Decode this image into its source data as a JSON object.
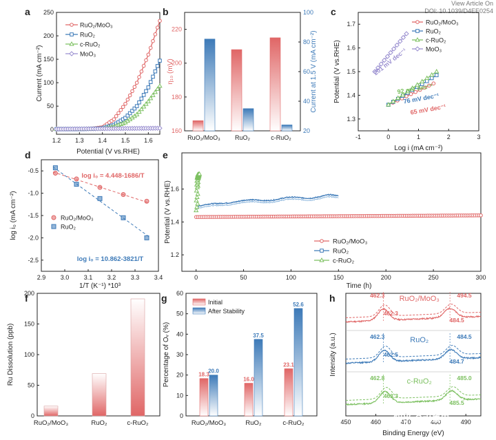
{
  "header": {
    "line1": "View Article On",
    "line2": "DOI: 10.1039/D4EE0254"
  },
  "watermark": "知乎 @水墨电",
  "colors": {
    "red": "#e06666",
    "blue": "#3d7ab8",
    "green": "#7cc060",
    "purple": "#9a8fd0",
    "lightBlue": "#8fb8de"
  },
  "chart_data": [
    {
      "panel": "a",
      "type": "line",
      "xlabel": "Potential (V vs.RHE)",
      "ylabel": "Current (mA cm⁻²)",
      "xlim": [
        1.2,
        1.65
      ],
      "ylim": [
        -10,
        250
      ],
      "xticks": [
        "1.2",
        "1.3",
        "1.4",
        "1.5",
        "1.6"
      ],
      "yticks": [
        "0",
        "50",
        "100",
        "150",
        "200",
        "250"
      ],
      "series": [
        {
          "name": "RuO₂/MoO₃",
          "color": "#e06666",
          "x": [
            1.2,
            1.3,
            1.35,
            1.4,
            1.45,
            1.5,
            1.55,
            1.6,
            1.65
          ],
          "y": [
            1,
            1,
            2,
            5,
            22,
            55,
            100,
            160,
            232
          ]
        },
        {
          "name": "RuO₂",
          "color": "#3d7ab8",
          "x": [
            1.2,
            1.3,
            1.35,
            1.4,
            1.45,
            1.5,
            1.55,
            1.6,
            1.65
          ],
          "y": [
            1,
            1,
            1.5,
            3,
            10,
            25,
            50,
            90,
            147
          ]
        },
        {
          "name": "c-RuO₂",
          "color": "#7cc060",
          "x": [
            1.2,
            1.3,
            1.35,
            1.4,
            1.45,
            1.5,
            1.55,
            1.6,
            1.65
          ],
          "y": [
            1,
            1,
            1.5,
            2,
            6,
            15,
            32,
            60,
            93
          ]
        },
        {
          "name": "MoO₃",
          "color": "#9a8fd0",
          "x": [
            1.2,
            1.65
          ],
          "y": [
            1,
            3
          ]
        }
      ]
    },
    {
      "panel": "b",
      "type": "bar",
      "categories": [
        "RuO₂/MoO₃",
        "RuO₂",
        "c-RuO₂"
      ],
      "ylabel_left": "η₁₀ (mV)",
      "ylim_left": [
        160,
        230
      ],
      "yticks_left": [
        "160",
        "180",
        "200",
        "220"
      ],
      "ylabel_right": "Current at 1.5 V (mA cm⁻²)",
      "ylim_right": [
        20,
        100
      ],
      "yticks_right": [
        "20",
        "40",
        "60",
        "80",
        "100"
      ],
      "series": [
        {
          "name": "η₁₀",
          "axis": "left",
          "color": "#e06666",
          "values": [
            166,
            208,
            215
          ]
        },
        {
          "name": "Current at 1.5 V",
          "axis": "right",
          "color": "#3d7ab8",
          "values": [
            82,
            35,
            24
          ]
        }
      ]
    },
    {
      "panel": "c",
      "type": "line",
      "xlabel": "Log i (mA cm⁻²)",
      "ylabel": "Potential (V vs.RHE)",
      "xlim": [
        -1,
        3
      ],
      "ylim": [
        1.25,
        1.75
      ],
      "xticks": [
        "-1",
        "0",
        "1",
        "2",
        "3"
      ],
      "yticks": [
        "1.3",
        "1.4",
        "1.5",
        "1.6",
        "1.7"
      ],
      "series": [
        {
          "name": "RuO₂/MoO₃",
          "color": "#e06666",
          "x": [
            0,
            1.5
          ],
          "y": [
            1.36,
            1.45
          ]
        },
        {
          "name": "RuO₂",
          "color": "#3d7ab8",
          "x": [
            0,
            1.6
          ],
          "y": [
            1.36,
            1.485
          ]
        },
        {
          "name": "c-RuO₂",
          "color": "#7cc060",
          "x": [
            0,
            1.6
          ],
          "y": [
            1.36,
            1.5
          ]
        },
        {
          "name": "MoO₃",
          "color": "#9a8fd0",
          "x": [
            -0.45,
            0.6
          ],
          "y": [
            1.5,
            1.66
          ]
        }
      ],
      "annotations": [
        "201 mV dec⁻¹",
        "92 mV dec⁻¹",
        "76 mV dec⁻¹",
        "65 mV dec⁻¹"
      ]
    },
    {
      "panel": "d",
      "type": "scatter",
      "xlabel": "1/T (K⁻¹) *10³",
      "ylabel": "log i₀ (mA cm⁻²)",
      "xlim": [
        2.9,
        3.4
      ],
      "ylim": [
        -2.75,
        -0.25
      ],
      "xticks": [
        "2.9",
        "3.0",
        "3.1",
        "3.2",
        "3.3",
        "3.4"
      ],
      "yticks": [
        "-0.5",
        "-1.0",
        "-1.5",
        "-2.0",
        "-2.5"
      ],
      "series": [
        {
          "name": "RuO₂/MoO₃",
          "color": "#e06666",
          "x": [
            2.96,
            3.05,
            3.15,
            3.25,
            3.35
          ],
          "y": [
            -0.55,
            -0.68,
            -0.87,
            -1.03,
            -1.18
          ]
        },
        {
          "name": "RuO₂",
          "color": "#3d7ab8",
          "x": [
            2.96,
            3.05,
            3.15,
            3.25,
            3.35
          ],
          "y": [
            -0.43,
            -0.8,
            -1.12,
            -1.55,
            -2.0
          ]
        }
      ],
      "fits": [
        {
          "label": "log i₀ = 4.448-1686/T",
          "color": "#e06666",
          "a": 4.448,
          "b": 1.686
        },
        {
          "label": "log i₀ = 10.862-3821/T",
          "color": "#3d7ab8",
          "a": 10.862,
          "b": 3.821
        }
      ]
    },
    {
      "panel": "e",
      "type": "line",
      "xlabel": "Time (h)",
      "ylabel": "Potential (V vs.RHE)",
      "xlim": [
        -15,
        300
      ],
      "ylim": [
        1.1,
        1.82
      ],
      "xticks": [
        "0",
        "50",
        "100",
        "150",
        "200",
        "250",
        "300"
      ],
      "yticks": [
        "1.2",
        "1.4",
        "1.6"
      ],
      "series": [
        {
          "name": "RuO₂/MoO₃",
          "color": "#e06666",
          "x": [
            0,
            300
          ],
          "y": [
            1.43,
            1.44
          ]
        },
        {
          "name": "RuO₂",
          "color": "#3d7ab8",
          "x": [
            0,
            10,
            30,
            60,
            100,
            120,
            140,
            150
          ],
          "y": [
            1.49,
            1.5,
            1.52,
            1.53,
            1.545,
            1.55,
            1.56,
            1.555
          ]
        },
        {
          "name": "c-RuO₂",
          "color": "#7cc060",
          "x": [
            0,
            0.5,
            1,
            2
          ],
          "y": [
            1.47,
            1.62,
            1.68,
            1.72
          ]
        }
      ]
    },
    {
      "panel": "f",
      "type": "bar",
      "ylabel": "Ru Dissolution (ppb)",
      "ylim": [
        0,
        200
      ],
      "yticks": [
        "0",
        "50",
        "100",
        "150",
        "200"
      ],
      "categories": [
        "RuO₂/MoO₃",
        "RuO₂",
        "c-RuO₂"
      ],
      "values": [
        16,
        69,
        191
      ],
      "color": "#e06666"
    },
    {
      "panel": "g",
      "type": "bar",
      "ylabel": "Percentage of Oᵥ (%)",
      "ylim": [
        0,
        60
      ],
      "yticks": [
        "0",
        "10",
        "20",
        "30",
        "40",
        "50",
        "60"
      ],
      "categories": [
        "RuO₂/MoO₃",
        "RuO₂",
        "c-RuO₂"
      ],
      "series": [
        {
          "name": "Initial",
          "color": "#e06666",
          "values": [
            18.3,
            16.0,
            23.1
          ],
          "labels": [
            "18.3",
            "16.0",
            "23.1"
          ]
        },
        {
          "name": "After Stability",
          "color": "#3d7ab8",
          "values": [
            20.0,
            37.5,
            52.6
          ],
          "labels": [
            "20.0",
            "37.5",
            "52.6"
          ]
        }
      ]
    },
    {
      "panel": "h",
      "type": "line",
      "xlabel": "Binding Energy (eV)",
      "ylabel": "Intensity (a.u.)",
      "xlim": [
        450,
        495
      ],
      "xticks": [
        "450",
        "460",
        "470",
        "480",
        "490"
      ],
      "spectra": [
        {
          "name": "RuO₂/MoO₃",
          "color": "#e06666",
          "peaks_top": [
            "462.3",
            "494.5"
          ],
          "peaks_bottom": [
            "462.3",
            "484.5"
          ]
        },
        {
          "name": "RuO₂",
          "color": "#3d7ab8",
          "peaks_top": [
            "462.3",
            "484.5"
          ],
          "peaks_bottom": [
            "462.5",
            "484.7"
          ]
        },
        {
          "name": "c-RuO₂",
          "color": "#7cc060",
          "peaks_top": [
            "462.8",
            "485.0"
          ],
          "peaks_bottom": [
            "463.3",
            "485.5"
          ]
        }
      ]
    }
  ]
}
